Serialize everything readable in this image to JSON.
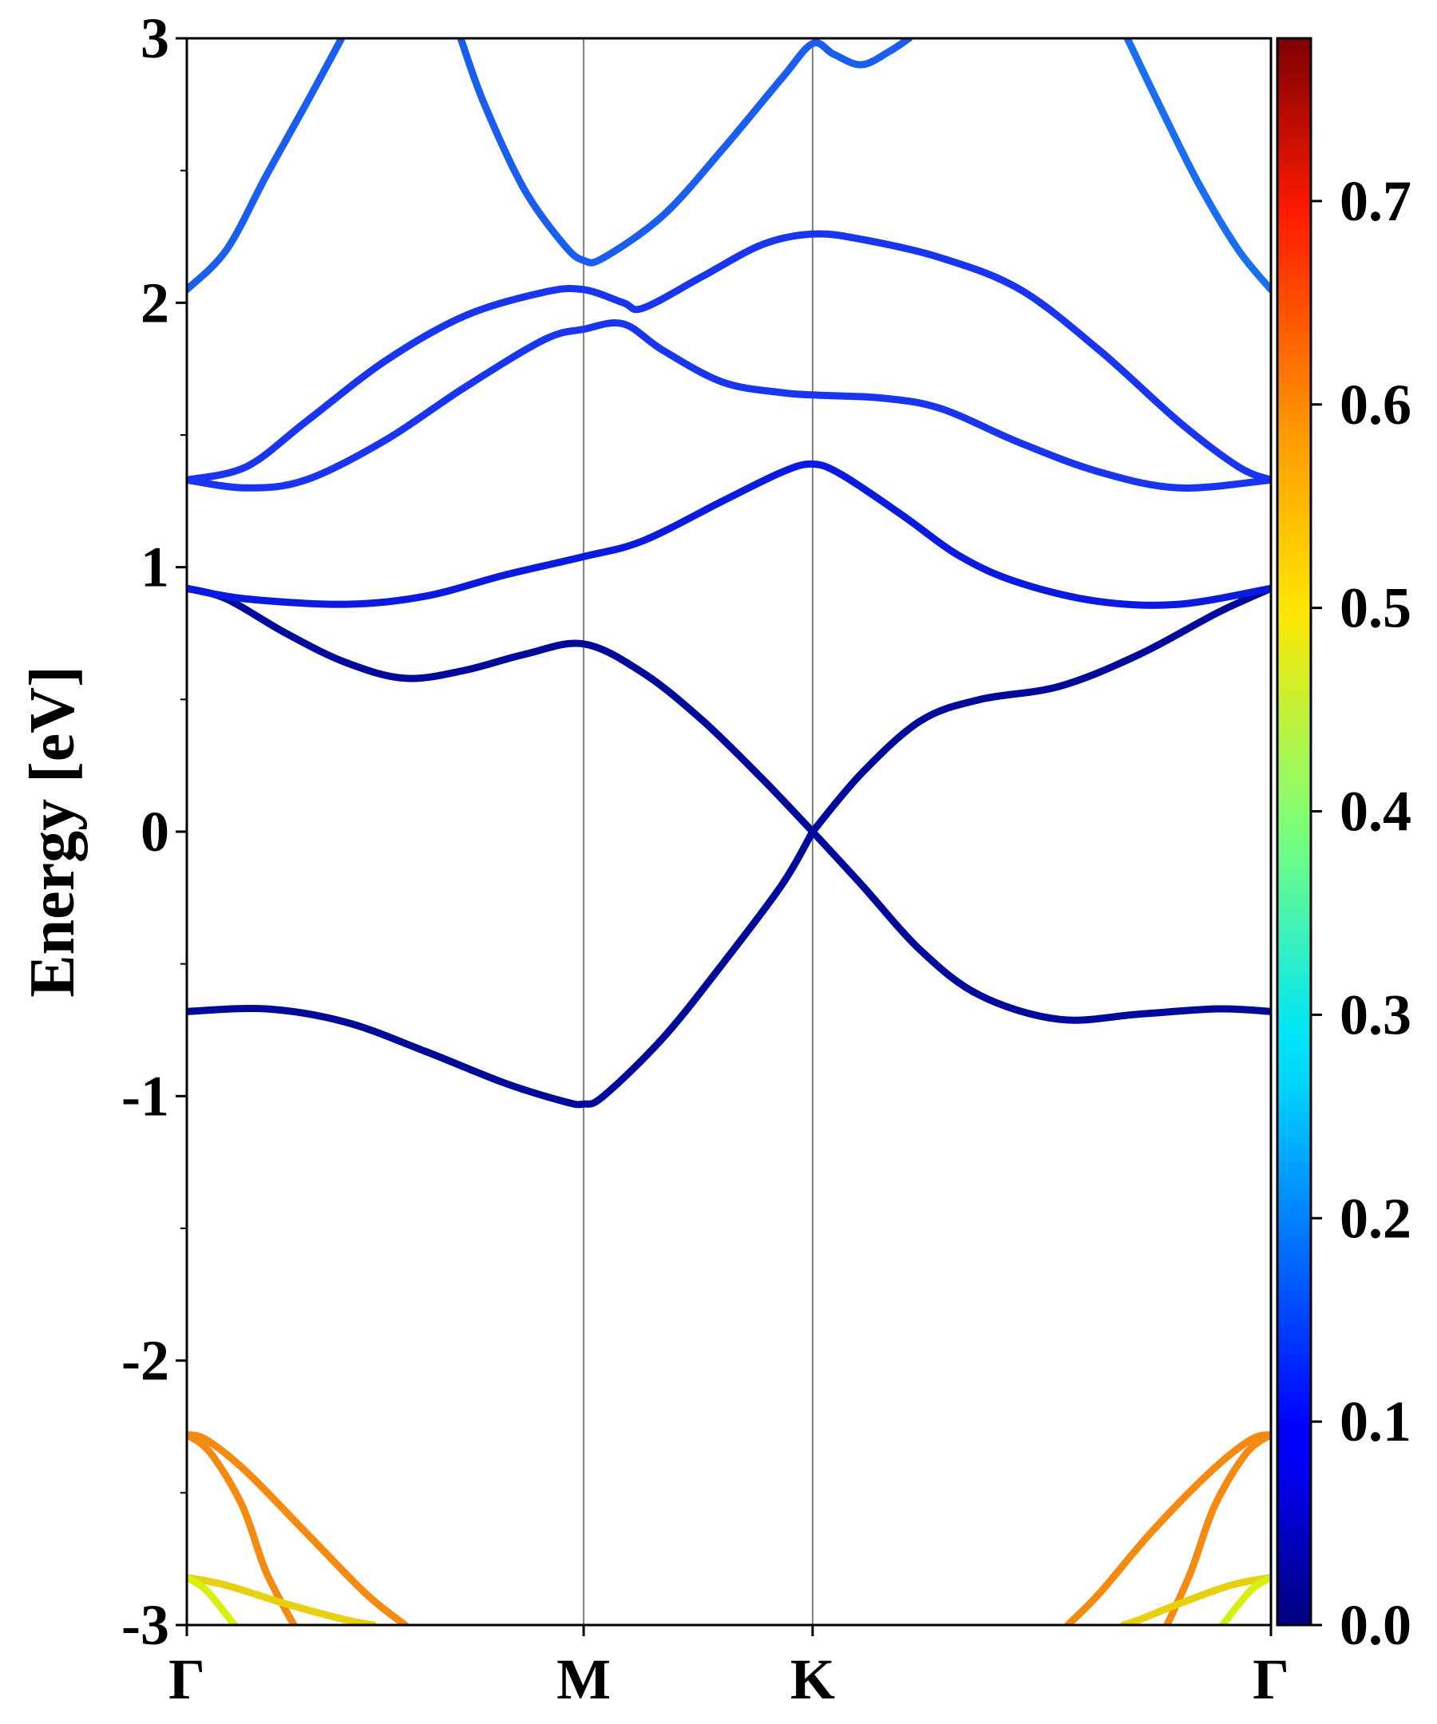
{
  "chart_data": {
    "type": "line",
    "ylabel": "Energy [eV]",
    "ylim": [
      -3,
      3
    ],
    "yticks": [
      "-3",
      "-2",
      "-1",
      "0",
      "1",
      "2",
      "3"
    ],
    "ytick_values": [
      -3,
      -2,
      -1,
      0,
      1,
      2,
      3
    ],
    "xticks": [
      {
        "label": "Γ",
        "k": 0
      },
      {
        "label": "M",
        "k": 1
      },
      {
        "label": "K",
        "k": 1.577
      },
      {
        "label": "Γ",
        "k": 2.732
      }
    ],
    "xlim": [
      0,
      2.732
    ],
    "vertical_lines_at": [
      1,
      1.577
    ],
    "colorbar": {
      "range": [
        0,
        0.78
      ],
      "ticks": [
        "0.0",
        "0.1",
        "0.2",
        "0.3",
        "0.4",
        "0.5",
        "0.6",
        "0.7"
      ],
      "tick_values": [
        0,
        0.1,
        0.2,
        0.3,
        0.4,
        0.5,
        0.6,
        0.7
      ],
      "colormap": "jet"
    },
    "series": [
      {
        "color": "#000a9a",
        "points": [
          [
            0,
            -0.68
          ],
          [
            0.2,
            -0.67
          ],
          [
            0.4,
            -0.72
          ],
          [
            0.6,
            -0.83
          ],
          [
            0.8,
            -0.95
          ],
          [
            0.95,
            -1.02
          ],
          [
            1,
            -1.03
          ],
          [
            1.05,
            -1.0
          ],
          [
            1.2,
            -0.78
          ],
          [
            1.35,
            -0.5
          ],
          [
            1.5,
            -0.2
          ],
          [
            1.577,
            0
          ]
        ]
      },
      {
        "color": "#000a9a",
        "points": [
          [
            1.577,
            0
          ],
          [
            1.7,
            0.22
          ],
          [
            1.85,
            0.42
          ],
          [
            2.0,
            0.5
          ],
          [
            2.2,
            0.55
          ],
          [
            2.4,
            0.67
          ],
          [
            2.6,
            0.83
          ],
          [
            2.732,
            0.92
          ]
        ]
      },
      {
        "color": "#000a9a",
        "points": [
          [
            1.577,
            0
          ],
          [
            1.7,
            -0.2
          ],
          [
            1.85,
            -0.45
          ],
          [
            2.0,
            -0.62
          ],
          [
            2.2,
            -0.71
          ],
          [
            2.4,
            -0.69
          ],
          [
            2.6,
            -0.67
          ],
          [
            2.732,
            -0.68
          ]
        ]
      },
      {
        "color": "#000a9a",
        "points": [
          [
            0,
            0.92
          ],
          [
            0.1,
            0.88
          ],
          [
            0.25,
            0.75
          ],
          [
            0.4,
            0.64
          ],
          [
            0.55,
            0.58
          ],
          [
            0.7,
            0.61
          ],
          [
            0.85,
            0.67
          ],
          [
            1,
            0.71
          ],
          [
            1.15,
            0.6
          ],
          [
            1.3,
            0.42
          ],
          [
            1.45,
            0.2
          ],
          [
            1.577,
            0
          ]
        ]
      },
      {
        "color": "#0a1adf",
        "points": [
          [
            0,
            0.92
          ],
          [
            0.15,
            0.88
          ],
          [
            0.4,
            0.86
          ],
          [
            0.6,
            0.89
          ],
          [
            0.8,
            0.97
          ],
          [
            1,
            1.04
          ],
          [
            1.15,
            1.1
          ],
          [
            1.35,
            1.25
          ],
          [
            1.5,
            1.36
          ],
          [
            1.577,
            1.39
          ],
          [
            1.65,
            1.35
          ],
          [
            1.8,
            1.2
          ],
          [
            1.95,
            1.04
          ],
          [
            2.1,
            0.94
          ],
          [
            2.3,
            0.87
          ],
          [
            2.5,
            0.86
          ],
          [
            2.732,
            0.92
          ]
        ]
      },
      {
        "color": "#1a35f0",
        "points": [
          [
            0,
            1.33
          ],
          [
            0.15,
            1.3
          ],
          [
            0.3,
            1.33
          ],
          [
            0.5,
            1.48
          ],
          [
            0.7,
            1.68
          ],
          [
            0.9,
            1.86
          ],
          [
            1,
            1.9
          ],
          [
            1.1,
            1.92
          ],
          [
            1.2,
            1.82
          ],
          [
            1.35,
            1.7
          ],
          [
            1.5,
            1.66
          ],
          [
            1.6,
            1.65
          ],
          [
            1.75,
            1.64
          ],
          [
            1.9,
            1.6
          ],
          [
            2.1,
            1.47
          ],
          [
            2.3,
            1.36
          ],
          [
            2.5,
            1.3
          ],
          [
            2.732,
            1.33
          ]
        ]
      },
      {
        "color": "#1a35f0",
        "points": [
          [
            0,
            1.33
          ],
          [
            0.15,
            1.38
          ],
          [
            0.3,
            1.55
          ],
          [
            0.5,
            1.78
          ],
          [
            0.7,
            1.95
          ],
          [
            0.9,
            2.04
          ],
          [
            1,
            2.05
          ],
          [
            1.1,
            2.0
          ],
          [
            1.15,
            1.98
          ],
          [
            1.3,
            2.1
          ],
          [
            1.45,
            2.22
          ],
          [
            1.577,
            2.26
          ],
          [
            1.7,
            2.24
          ],
          [
            1.9,
            2.17
          ],
          [
            2.1,
            2.05
          ],
          [
            2.3,
            1.82
          ],
          [
            2.5,
            1.55
          ],
          [
            2.65,
            1.38
          ],
          [
            2.732,
            1.33
          ]
        ]
      },
      {
        "color": "#1a5ef0",
        "points": [
          [
            0,
            2.05
          ],
          [
            0.1,
            2.2
          ],
          [
            0.2,
            2.48
          ],
          [
            0.3,
            2.75
          ],
          [
            0.39,
            3.0
          ]
        ]
      },
      {
        "color": "#1a5ef0",
        "points": [
          [
            0.69,
            3.0
          ],
          [
            0.75,
            2.75
          ],
          [
            0.85,
            2.43
          ],
          [
            0.95,
            2.22
          ],
          [
            1,
            2.16
          ],
          [
            1.05,
            2.17
          ],
          [
            1.2,
            2.33
          ],
          [
            1.35,
            2.58
          ],
          [
            1.5,
            2.85
          ],
          [
            1.577,
            2.98
          ],
          [
            1.63,
            2.94
          ],
          [
            1.7,
            2.9
          ],
          [
            1.77,
            2.95
          ],
          [
            1.82,
            3.0
          ]
        ]
      },
      {
        "color": "#1a6ef0",
        "points": [
          [
            2.37,
            3.0
          ],
          [
            2.45,
            2.75
          ],
          [
            2.55,
            2.45
          ],
          [
            2.65,
            2.2
          ],
          [
            2.732,
            2.05
          ]
        ]
      },
      {
        "color": "#f58a10",
        "points": [
          [
            0,
            -2.28
          ],
          [
            0.05,
            -2.3
          ],
          [
            0.15,
            -2.42
          ],
          [
            0.3,
            -2.65
          ],
          [
            0.45,
            -2.88
          ],
          [
            0.55,
            -3.0
          ]
        ]
      },
      {
        "color": "#f58a10",
        "points": [
          [
            0,
            -2.28
          ],
          [
            0.06,
            -2.35
          ],
          [
            0.14,
            -2.55
          ],
          [
            0.2,
            -2.8
          ],
          [
            0.27,
            -3.0
          ]
        ]
      },
      {
        "color": "#e6d010",
        "points": [
          [
            0,
            -2.82
          ],
          [
            0.1,
            -2.85
          ],
          [
            0.25,
            -2.92
          ],
          [
            0.4,
            -2.98
          ],
          [
            0.47,
            -3.0
          ]
        ]
      },
      {
        "color": "#d8f010",
        "points": [
          [
            0,
            -2.82
          ],
          [
            0.05,
            -2.87
          ],
          [
            0.12,
            -3.0
          ]
        ]
      },
      {
        "color": "#f58a10",
        "points": [
          [
            2.732,
            -2.28
          ],
          [
            2.68,
            -2.3
          ],
          [
            2.58,
            -2.42
          ],
          [
            2.43,
            -2.65
          ],
          [
            2.3,
            -2.88
          ],
          [
            2.22,
            -3.0
          ]
        ]
      },
      {
        "color": "#f58a10",
        "points": [
          [
            2.732,
            -2.28
          ],
          [
            2.67,
            -2.35
          ],
          [
            2.59,
            -2.55
          ],
          [
            2.53,
            -2.8
          ],
          [
            2.47,
            -3.0
          ]
        ]
      },
      {
        "color": "#e6d010",
        "points": [
          [
            2.732,
            -2.82
          ],
          [
            2.63,
            -2.85
          ],
          [
            2.5,
            -2.92
          ],
          [
            2.4,
            -2.98
          ],
          [
            2.36,
            -3.0
          ]
        ]
      },
      {
        "color": "#d8f010",
        "points": [
          [
            2.732,
            -2.82
          ],
          [
            2.68,
            -2.87
          ],
          [
            2.61,
            -3.0
          ]
        ]
      }
    ]
  }
}
